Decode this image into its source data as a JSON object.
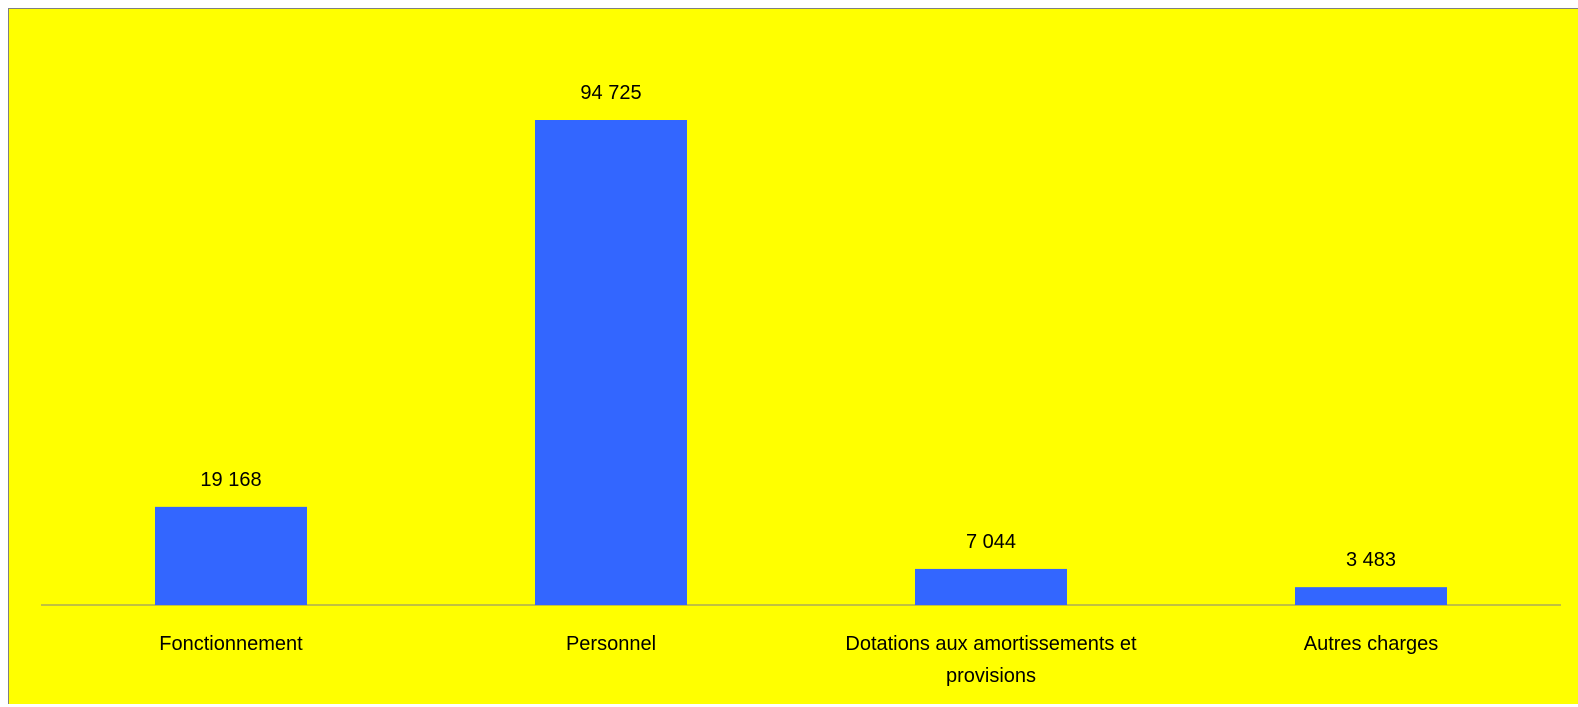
{
  "chart_data": {
    "type": "bar",
    "categories": [
      "Fonctionnement",
      "Personnel",
      "Dotations aux amortissements et provisions",
      "Autres charges"
    ],
    "category_lines": [
      [
        "Fonctionnement"
      ],
      [
        "Personnel"
      ],
      [
        "Dotations aux amortissements et",
        "provisions"
      ],
      [
        "Autres charges"
      ]
    ],
    "values": [
      19168,
      94725,
      7044,
      3483
    ],
    "data_labels": [
      "19 168",
      "94 725",
      "7 044",
      "3 483"
    ],
    "title": "",
    "xlabel": "",
    "ylabel": "",
    "ylim": [
      0,
      100000
    ],
    "grid": false,
    "legend": "none",
    "colors": {
      "background": "#ffff00",
      "bar": "#3366ff",
      "axis": "#808080"
    }
  }
}
